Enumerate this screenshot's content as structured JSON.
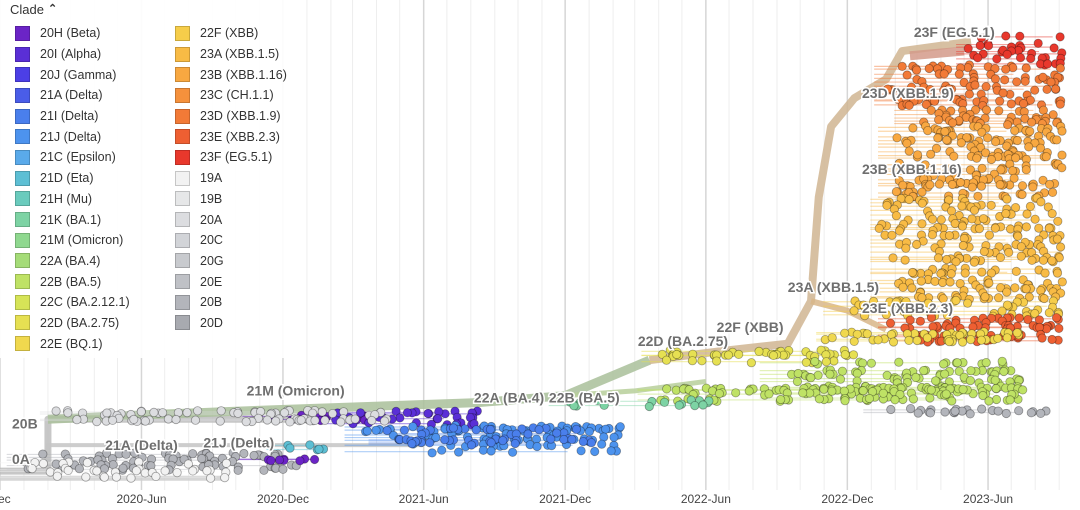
{
  "legend": {
    "title": "Clade",
    "toggle_icon": "chevron-up-icon",
    "items": [
      {
        "label": "20H (Beta)",
        "color": "#6b24c6"
      },
      {
        "label": "20I (Alpha)",
        "color": "#5a2fd6"
      },
      {
        "label": "20J (Gamma)",
        "color": "#4c3fe6"
      },
      {
        "label": "21A (Delta)",
        "color": "#4a5de8"
      },
      {
        "label": "21I (Delta)",
        "color": "#4a7fec"
      },
      {
        "label": "21J (Delta)",
        "color": "#4d93ee"
      },
      {
        "label": "21C (Epsilon)",
        "color": "#5aaaea"
      },
      {
        "label": "21D (Eta)",
        "color": "#5dbfd4"
      },
      {
        "label": "21H (Mu)",
        "color": "#6acbbd"
      },
      {
        "label": "21K (BA.1)",
        "color": "#7dd3a4"
      },
      {
        "label": "21M (Omicron)",
        "color": "#8fd88f"
      },
      {
        "label": "22A (BA.4)",
        "color": "#a5dc78"
      },
      {
        "label": "22B (BA.5)",
        "color": "#bfe265"
      },
      {
        "label": "22C (BA.2.12.1)",
        "color": "#d6e457"
      },
      {
        "label": "22D (BA.2.75)",
        "color": "#e6e052"
      },
      {
        "label": "22E (BQ.1)",
        "color": "#f0d84e"
      },
      {
        "label": "22F (XBB)",
        "color": "#f6cd4a"
      },
      {
        "label": "23A (XBB.1.5)",
        "color": "#f8bb45"
      },
      {
        "label": "23B (XBB.1.16)",
        "color": "#f8a841"
      },
      {
        "label": "23C (CH.1.1)",
        "color": "#f5913c"
      },
      {
        "label": "23D (XBB.1.9)",
        "color": "#f27a37"
      },
      {
        "label": "23E (XBB.2.3)",
        "color": "#ee5f32"
      },
      {
        "label": "23F (EG.5.1)",
        "color": "#e8382c"
      },
      {
        "label": "19A",
        "color": "#f2f2f2"
      },
      {
        "label": "19B",
        "color": "#e6e7e8"
      },
      {
        "label": "20A",
        "color": "#dcdde0"
      },
      {
        "label": "20C",
        "color": "#d2d4d8"
      },
      {
        "label": "20G",
        "color": "#c8cace"
      },
      {
        "label": "20E",
        "color": "#bfc1c6"
      },
      {
        "label": "20B",
        "color": "#b3b5bb"
      },
      {
        "label": "20D",
        "color": "#a8aab0"
      }
    ]
  },
  "chart_data": {
    "type": "scatter",
    "description_free": "",
    "title": "",
    "xlabel": "",
    "ylabel": "",
    "x_axis": {
      "type": "date",
      "range": [
        "2019-12-01",
        "2023-09-15"
      ],
      "ticks": [
        {
          "label": "Dec",
          "date": "2019-12-01"
        },
        {
          "label": "2020-Jun",
          "date": "2020-06-01"
        },
        {
          "label": "2020-Dec",
          "date": "2020-12-01"
        },
        {
          "label": "2021-Jun",
          "date": "2021-06-01"
        },
        {
          "label": "2021-Dec",
          "date": "2021-12-01"
        },
        {
          "label": "2022-Jun",
          "date": "2022-06-01"
        },
        {
          "label": "2022-Dec",
          "date": "2022-12-01"
        },
        {
          "label": "2023-Jun",
          "date": "2023-06-01"
        }
      ],
      "grid": true
    },
    "clade_labels": [
      {
        "text": "23F (EG.5.1)",
        "date": "2023-02-25",
        "clade": "23F (EG.5.1)"
      },
      {
        "text": "23D (XBB.1.9)",
        "date": "2022-12-20",
        "clade": "23D (XBB.1.9)"
      },
      {
        "text": "23B (XBB.1.16)",
        "date": "2022-12-20",
        "clade": "23B (XBB.1.16)"
      },
      {
        "text": "23A (XBB.1.5)",
        "date": "2022-09-15",
        "clade": "23A (XBB.1.5)"
      },
      {
        "text": "23E (XBB.2.3)",
        "date": "2022-12-20",
        "clade": "23E (XBB.2.3)"
      },
      {
        "text": "22F (XBB)",
        "date": "2022-06-15",
        "clade": "22F (XBB)"
      },
      {
        "text": "22D (BA.2.75)",
        "date": "2022-03-05",
        "clade": "22D (BA.2.75)"
      },
      {
        "text": "22A (BA.4)",
        "date": "2021-08-05",
        "clade": "22A (BA.4)"
      },
      {
        "text": "22B (BA.5)",
        "date": "2021-11-10",
        "clade": "22B (BA.5)"
      },
      {
        "text": "21M (Omicron)",
        "date": "2020-10-15",
        "clade": "21M (Omicron)"
      },
      {
        "text": "20B",
        "date": "2019-12-01",
        "clade": "20B"
      },
      {
        "text": "21A (Delta)",
        "date": "2020-04-15",
        "clade": "21A (Delta)"
      },
      {
        "text": "21J (Delta)",
        "date": "2020-08-20",
        "clade": "21J (Delta)"
      },
      {
        "text": "0A",
        "date": "2019-12-01",
        "clade": "20A"
      }
    ],
    "clusters": [
      {
        "clade": "23F (EG.5.1)",
        "start": "2023-05-01",
        "end": "2023-09-05",
        "band": [
          0.04,
          0.1
        ]
      },
      {
        "clade": "23D (XBB.1.9)",
        "start": "2023-01-15",
        "end": "2023-09-05",
        "band": [
          0.1,
          0.19
        ]
      },
      {
        "clade": "23C (CH.1.1)",
        "start": "2023-02-10",
        "end": "2023-09-05",
        "band": [
          0.19,
          0.23
        ]
      },
      {
        "clade": "23B (XBB.1.16)",
        "start": "2023-01-20",
        "end": "2023-09-05",
        "band": [
          0.23,
          0.38
        ]
      },
      {
        "clade": "23A (XBB.1.5)",
        "start": "2023-01-10",
        "end": "2023-09-05",
        "band": [
          0.38,
          0.6
        ]
      },
      {
        "clade": "22F (XBB)",
        "start": "2022-11-10",
        "end": "2023-09-05",
        "band": [
          0.6,
          0.63
        ]
      },
      {
        "clade": "23E (XBB.2.3)",
        "start": "2023-01-20",
        "end": "2023-09-05",
        "band": [
          0.63,
          0.69
        ]
      },
      {
        "clade": "22E (BQ.1)",
        "start": "2022-11-01",
        "end": "2023-07-15",
        "band": [
          0.66,
          0.69
        ]
      },
      {
        "clade": "22D (BA.2.75)",
        "start": "2022-03-20",
        "end": "2022-12-10",
        "band": [
          0.7,
          0.73
        ]
      },
      {
        "clade": "22B (BA.5)",
        "start": "2022-08-20",
        "end": "2023-07-15",
        "band": [
          0.73,
          0.81
        ]
      },
      {
        "clade": "22B (BA.5)",
        "start": "2022-03-15",
        "end": "2023-07-20",
        "band": [
          0.78,
          0.81
        ]
      },
      {
        "clade": "21K (BA.1)",
        "start": "2021-11-20",
        "end": "2022-06-15",
        "band": [
          0.81,
          0.83
        ]
      },
      {
        "clade": "20B",
        "start": "2023-01-01",
        "end": "2023-08-20",
        "band": [
          0.83,
          0.84
        ]
      },
      {
        "clade": "20H (Beta)",
        "start": "2020-10-20",
        "end": "2021-04-10",
        "band": [
          0.84,
          0.86
        ]
      },
      {
        "clade": "20I (Alpha)",
        "start": "2021-02-01",
        "end": "2021-08-10",
        "band": [
          0.83,
          0.86
        ]
      },
      {
        "clade": "20A",
        "start": "2020-02-01",
        "end": "2021-04-20",
        "band": [
          0.83,
          0.86
        ]
      },
      {
        "clade": "21J (Delta)",
        "start": "2021-03-01",
        "end": "2022-02-15",
        "band": [
          0.86,
          0.92
        ]
      },
      {
        "clade": "21I (Delta)",
        "start": "2021-04-01",
        "end": "2022-01-10",
        "band": [
          0.87,
          0.91
        ]
      },
      {
        "clade": "21D (Eta)",
        "start": "2020-11-20",
        "end": "2021-01-30",
        "band": [
          0.9,
          0.92
        ]
      },
      {
        "clade": "20B",
        "start": "2019-12-20",
        "end": "2020-12-20",
        "band": [
          0.92,
          0.96
        ]
      },
      {
        "clade": "20H (Beta)",
        "start": "2020-10-10",
        "end": "2021-01-20",
        "band": [
          0.93,
          0.94
        ]
      },
      {
        "clade": "19A",
        "start": "2019-12-10",
        "end": "2020-09-20",
        "band": [
          0.94,
          0.975
        ]
      }
    ]
  }
}
